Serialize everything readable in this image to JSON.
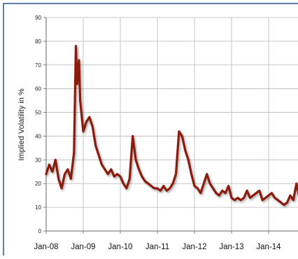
{
  "chart_data": {
    "type": "line",
    "title": "",
    "xlabel": "",
    "ylabel": "Implied Volatility in %",
    "ylim": [
      0,
      90
    ],
    "xlim": [
      "2008-01",
      "2014-12"
    ],
    "y_ticks": [
      "0",
      "10",
      "20",
      "30",
      "40",
      "50",
      "60",
      "70",
      "80",
      "90"
    ],
    "x_ticks": [
      {
        "label": "Jan-08",
        "date": "2008-01"
      },
      {
        "label": "Jan-09",
        "date": "2009-01"
      },
      {
        "label": "Jan-10",
        "date": "2010-01"
      },
      {
        "label": "Jan-11",
        "date": "2011-01"
      },
      {
        "label": "Jan-12",
        "date": "2012-01"
      },
      {
        "label": "Jan-13",
        "date": "2013-01"
      },
      {
        "label": "Jan-14",
        "date": "2014-01"
      }
    ],
    "grid": true,
    "legend": "none",
    "series": [
      {
        "color": "#8b1a0d",
        "points": [
          [
            "2008-01",
            24
          ],
          [
            "2008-02",
            28
          ],
          [
            "2008-03",
            25
          ],
          [
            "2008-04",
            30
          ],
          [
            "2008-05",
            22
          ],
          [
            "2008-06",
            18
          ],
          [
            "2008-07",
            24
          ],
          [
            "2008-08",
            26
          ],
          [
            "2008-09",
            22
          ],
          [
            "2008-10",
            33
          ],
          [
            "2008-10-20",
            78
          ],
          [
            "2008-11",
            62
          ],
          [
            "2008-11-20",
            72
          ],
          [
            "2008-12",
            55
          ],
          [
            "2009-01",
            42
          ],
          [
            "2009-02",
            46
          ],
          [
            "2009-03",
            48
          ],
          [
            "2009-04",
            44
          ],
          [
            "2009-05",
            36
          ],
          [
            "2009-06",
            32
          ],
          [
            "2009-07",
            28
          ],
          [
            "2009-08",
            26
          ],
          [
            "2009-09",
            24
          ],
          [
            "2009-10",
            26
          ],
          [
            "2009-11",
            23
          ],
          [
            "2009-12",
            24
          ],
          [
            "2010-01",
            23
          ],
          [
            "2010-02",
            20
          ],
          [
            "2010-03",
            18
          ],
          [
            "2010-04",
            22
          ],
          [
            "2010-05",
            40
          ],
          [
            "2010-06",
            30
          ],
          [
            "2010-07",
            26
          ],
          [
            "2010-08",
            23
          ],
          [
            "2010-09",
            21
          ],
          [
            "2010-10",
            20
          ],
          [
            "2010-11",
            19
          ],
          [
            "2010-12",
            18
          ],
          [
            "2011-01",
            18
          ],
          [
            "2011-02",
            17
          ],
          [
            "2011-03",
            19
          ],
          [
            "2011-04",
            17
          ],
          [
            "2011-05",
            18
          ],
          [
            "2011-06",
            20
          ],
          [
            "2011-07",
            24
          ],
          [
            "2011-08",
            42
          ],
          [
            "2011-09",
            40
          ],
          [
            "2011-10",
            34
          ],
          [
            "2011-11",
            30
          ],
          [
            "2011-12",
            24
          ],
          [
            "2012-01",
            19
          ],
          [
            "2012-02",
            18
          ],
          [
            "2012-03",
            16
          ],
          [
            "2012-04",
            20
          ],
          [
            "2012-05",
            24
          ],
          [
            "2012-06",
            20
          ],
          [
            "2012-07",
            18
          ],
          [
            "2012-08",
            16
          ],
          [
            "2012-09",
            15
          ],
          [
            "2012-10",
            17
          ],
          [
            "2012-11",
            16
          ],
          [
            "2012-12",
            19
          ],
          [
            "2013-01",
            14
          ],
          [
            "2013-02",
            13
          ],
          [
            "2013-03",
            14
          ],
          [
            "2013-04",
            13
          ],
          [
            "2013-05",
            14
          ],
          [
            "2013-06",
            17
          ],
          [
            "2013-07",
            14
          ],
          [
            "2013-08",
            15
          ],
          [
            "2013-09",
            16
          ],
          [
            "2013-10",
            17
          ],
          [
            "2013-11",
            13
          ],
          [
            "2013-12",
            14
          ],
          [
            "2014-01",
            15
          ],
          [
            "2014-02",
            16
          ],
          [
            "2014-03",
            14
          ],
          [
            "2014-04",
            13
          ],
          [
            "2014-05",
            12
          ],
          [
            "2014-06",
            11
          ],
          [
            "2014-07",
            12
          ],
          [
            "2014-08",
            15
          ],
          [
            "2014-09",
            13
          ],
          [
            "2014-10",
            20
          ],
          [
            "2014-11",
            14
          ],
          [
            "2014-12",
            21
          ]
        ]
      }
    ]
  }
}
